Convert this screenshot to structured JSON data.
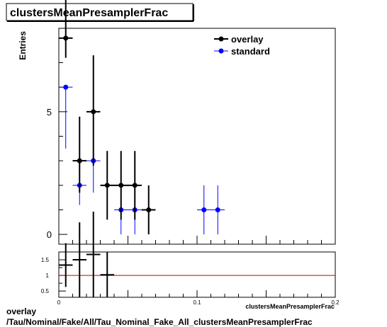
{
  "title": "clustersMeanPresamplerFrac",
  "footer": {
    "line1": "overlay",
    "line2": "/Tau/Nominal/Fake/All/Tau_Nominal_Fake_All_clustersMeanPresamplerFrac"
  },
  "colors": {
    "overlay": "#000000",
    "standard": "#0000ff",
    "ratio_line": "#cc0000"
  },
  "chart_data": [
    {
      "type": "scatter",
      "panel": "main",
      "ylabel": "Entries",
      "xlabel": "",
      "xlim": [
        0,
        0.2
      ],
      "ylim": [
        -0.4,
        8.4
      ],
      "yticks": [
        0,
        5
      ],
      "legend": {
        "position": "top-right",
        "entries": [
          "overlay",
          "standard"
        ]
      },
      "bin_width": 0.01,
      "series": [
        {
          "name": "overlay",
          "x": [
            0.005,
            0.015,
            0.025,
            0.035,
            0.045,
            0.055,
            0.065
          ],
          "y": [
            8,
            3,
            5,
            2,
            2,
            2,
            1
          ],
          "yerr_low": [
            0.8,
            1.3,
            2.2,
            1.4,
            1.4,
            1.4,
            1.0
          ],
          "yerr_high": [
            1.8,
            1.8,
            2.3,
            1.4,
            1.4,
            1.4,
            1.0
          ]
        },
        {
          "name": "standard",
          "x": [
            0.005,
            0.015,
            0.025,
            0.045,
            0.055,
            0.105,
            0.115
          ],
          "y": [
            6,
            2,
            3,
            1,
            1,
            1,
            1
          ],
          "yerr_low": [
            2.5,
            0.8,
            1.3,
            1.0,
            1.0,
            1.0,
            1.0
          ],
          "yerr_high": [
            0.0,
            0.0,
            0.0,
            0.0,
            0.0,
            1.0,
            1.0
          ]
        }
      ]
    },
    {
      "type": "scatter",
      "panel": "ratio",
      "xlabel": "clustersMeanPresamplerFrac",
      "xlim": [
        0,
        0.2
      ],
      "ylim": [
        0.3,
        1.75
      ],
      "yticks": [
        0.5,
        1,
        1.5
      ],
      "xticks": [
        0,
        0.1,
        0.2
      ],
      "reference_line": 1,
      "series": [
        {
          "name": "ratio",
          "x": [
            0.005,
            0.015,
            0.025,
            0.035
          ],
          "y": [
            1.33,
            1.5,
            1.67,
            1.02
          ],
          "yerr_low": [
            0.7,
            1.2,
            1.37,
            0.72
          ],
          "yerr_high": [
            0.7,
            1.2,
            1.37,
            0.72
          ]
        }
      ]
    }
  ]
}
